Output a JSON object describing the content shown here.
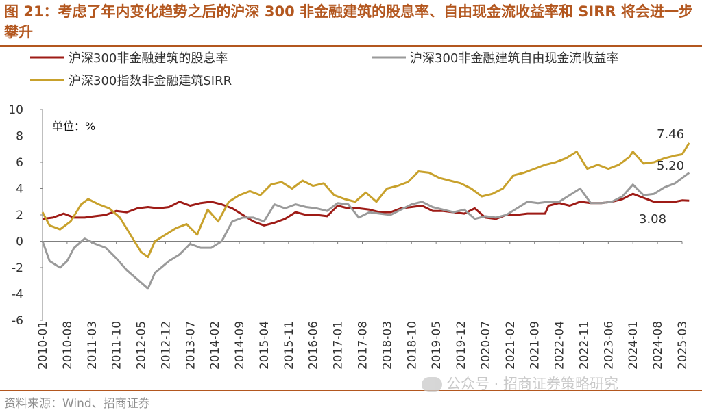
{
  "title": "图 21：考虑了年内变化趋势之后的沪深 300 非金融建筑的股息率、自由现金流收益率和 SIRR 将会进一步攀升",
  "source": "资料来源：Wind、招商证券",
  "watermark": "公众号 · 招商证券策略研究",
  "colors": {
    "title": "#b3571f",
    "dividend": "#9e1b16",
    "fcf": "#9a9a9a",
    "sirr": "#c8a12c"
  },
  "chart_data": {
    "type": "line",
    "unit_label": "单位：%",
    "ylim": [
      -6,
      10
    ],
    "yticks": [
      "10",
      "8",
      "6",
      "4",
      "2",
      "0",
      "-2",
      "-4",
      "-6"
    ],
    "xticks": [
      "2010-01",
      "2010-08",
      "2011-03",
      "2011-10",
      "2012-05",
      "2012-12",
      "2013-07",
      "2014-02",
      "2014-09",
      "2015-04",
      "2015-11",
      "2016-06",
      "2017-01",
      "2017-08",
      "2018-03",
      "2018-10",
      "2019-05",
      "2019-12",
      "2020-07",
      "2021-02",
      "2021-09",
      "2022-04",
      "2022-11",
      "2023-06",
      "2024-01",
      "2024-08",
      "2025-03"
    ],
    "legend_position": "top",
    "series": [
      {
        "name": "沪深300非金融建筑的股息率",
        "color": "#9e1b16",
        "end_label": "3.08",
        "points": [
          [
            "2010-01",
            1.7
          ],
          [
            "2010-04",
            1.8
          ],
          [
            "2010-07",
            2.1
          ],
          [
            "2010-10",
            1.8
          ],
          [
            "2011-01",
            1.8
          ],
          [
            "2011-04",
            1.9
          ],
          [
            "2011-07",
            2.0
          ],
          [
            "2011-10",
            2.3
          ],
          [
            "2012-01",
            2.2
          ],
          [
            "2012-04",
            2.5
          ],
          [
            "2012-07",
            2.6
          ],
          [
            "2012-10",
            2.5
          ],
          [
            "2013-01",
            2.6
          ],
          [
            "2013-04",
            3.0
          ],
          [
            "2013-07",
            2.7
          ],
          [
            "2013-10",
            2.9
          ],
          [
            "2014-01",
            3.0
          ],
          [
            "2014-04",
            2.8
          ],
          [
            "2014-07",
            2.5
          ],
          [
            "2014-10",
            2.0
          ],
          [
            "2015-01",
            1.5
          ],
          [
            "2015-04",
            1.2
          ],
          [
            "2015-07",
            1.4
          ],
          [
            "2015-10",
            1.7
          ],
          [
            "2016-01",
            2.2
          ],
          [
            "2016-04",
            2.0
          ],
          [
            "2016-07",
            2.0
          ],
          [
            "2016-10",
            1.9
          ],
          [
            "2017-01",
            2.7
          ],
          [
            "2017-04",
            2.5
          ],
          [
            "2017-07",
            2.5
          ],
          [
            "2017-10",
            2.4
          ],
          [
            "2018-01",
            2.2
          ],
          [
            "2018-04",
            2.2
          ],
          [
            "2018-07",
            2.5
          ],
          [
            "2018-10",
            2.6
          ],
          [
            "2019-01",
            2.7
          ],
          [
            "2019-04",
            2.3
          ],
          [
            "2019-07",
            2.3
          ],
          [
            "2019-10",
            2.2
          ],
          [
            "2020-01",
            2.1
          ],
          [
            "2020-04",
            2.5
          ],
          [
            "2020-07",
            1.8
          ],
          [
            "2020-10",
            1.7
          ],
          [
            "2021-01",
            2.0
          ],
          [
            "2021-04",
            2.0
          ],
          [
            "2021-07",
            2.1
          ],
          [
            "2021-10",
            2.1
          ],
          [
            "2021-12",
            2.1
          ],
          [
            "2022-01",
            2.7
          ],
          [
            "2022-04",
            2.9
          ],
          [
            "2022-07",
            2.7
          ],
          [
            "2022-10",
            3.0
          ],
          [
            "2023-01",
            2.9
          ],
          [
            "2023-04",
            2.9
          ],
          [
            "2023-07",
            3.0
          ],
          [
            "2023-10",
            3.2
          ],
          [
            "2024-01",
            3.6
          ],
          [
            "2024-04",
            3.3
          ],
          [
            "2024-07",
            3.0
          ],
          [
            "2024-10",
            3.0
          ],
          [
            "2025-01",
            3.0
          ],
          [
            "2025-03",
            3.1
          ],
          [
            "2025-05",
            3.08
          ]
        ]
      },
      {
        "name": "沪深300非金融建筑自由现金流收益率",
        "color": "#9a9a9a",
        "end_label": "5.20",
        "points": [
          [
            "2010-01",
            0.0
          ],
          [
            "2010-03",
            -1.5
          ],
          [
            "2010-06",
            -2.0
          ],
          [
            "2010-08",
            -1.5
          ],
          [
            "2010-10",
            -0.5
          ],
          [
            "2011-01",
            0.2
          ],
          [
            "2011-04",
            -0.2
          ],
          [
            "2011-07",
            -0.5
          ],
          [
            "2011-10",
            -1.3
          ],
          [
            "2012-01",
            -2.2
          ],
          [
            "2012-04",
            -2.9
          ],
          [
            "2012-07",
            -3.6
          ],
          [
            "2012-09",
            -2.4
          ],
          [
            "2013-01",
            -1.5
          ],
          [
            "2013-04",
            -1.0
          ],
          [
            "2013-07",
            -0.2
          ],
          [
            "2013-10",
            -0.5
          ],
          [
            "2014-01",
            -0.5
          ],
          [
            "2014-04",
            0.0
          ],
          [
            "2014-07",
            1.5
          ],
          [
            "2014-10",
            1.8
          ],
          [
            "2015-01",
            1.8
          ],
          [
            "2015-04",
            1.5
          ],
          [
            "2015-07",
            2.8
          ],
          [
            "2015-10",
            2.5
          ],
          [
            "2016-01",
            2.8
          ],
          [
            "2016-04",
            2.6
          ],
          [
            "2016-07",
            2.5
          ],
          [
            "2016-10",
            2.3
          ],
          [
            "2017-01",
            2.9
          ],
          [
            "2017-04",
            2.8
          ],
          [
            "2017-07",
            1.8
          ],
          [
            "2017-10",
            2.2
          ],
          [
            "2018-01",
            2.1
          ],
          [
            "2018-04",
            2.0
          ],
          [
            "2018-07",
            2.4
          ],
          [
            "2018-10",
            2.8
          ],
          [
            "2019-01",
            3.0
          ],
          [
            "2019-04",
            2.6
          ],
          [
            "2019-07",
            2.4
          ],
          [
            "2019-10",
            2.2
          ],
          [
            "2020-01",
            2.4
          ],
          [
            "2020-04",
            1.7
          ],
          [
            "2020-07",
            1.9
          ],
          [
            "2020-10",
            1.8
          ],
          [
            "2021-01",
            2.0
          ],
          [
            "2021-04",
            2.5
          ],
          [
            "2021-07",
            3.0
          ],
          [
            "2021-10",
            2.9
          ],
          [
            "2022-01",
            3.0
          ],
          [
            "2022-04",
            3.0
          ],
          [
            "2022-07",
            3.5
          ],
          [
            "2022-10",
            4.0
          ],
          [
            "2023-01",
            2.9
          ],
          [
            "2023-04",
            2.9
          ],
          [
            "2023-07",
            3.0
          ],
          [
            "2023-10",
            3.4
          ],
          [
            "2024-01",
            4.3
          ],
          [
            "2024-04",
            3.5
          ],
          [
            "2024-07",
            3.6
          ],
          [
            "2024-10",
            4.1
          ],
          [
            "2025-01",
            4.4
          ],
          [
            "2025-03",
            4.8
          ],
          [
            "2025-05",
            5.2
          ]
        ]
      },
      {
        "name": "沪深300指数非金融建筑SIRR",
        "color": "#c8a12c",
        "end_label": "7.46",
        "points": [
          [
            "2010-01",
            2.2
          ],
          [
            "2010-03",
            1.2
          ],
          [
            "2010-06",
            0.9
          ],
          [
            "2010-09",
            1.5
          ],
          [
            "2010-12",
            2.8
          ],
          [
            "2011-02",
            3.2
          ],
          [
            "2011-05",
            2.8
          ],
          [
            "2011-08",
            2.5
          ],
          [
            "2011-11",
            1.8
          ],
          [
            "2012-02",
            0.5
          ],
          [
            "2012-05",
            -0.8
          ],
          [
            "2012-07",
            -1.2
          ],
          [
            "2012-09",
            0.0
          ],
          [
            "2012-12",
            0.5
          ],
          [
            "2013-03",
            1.0
          ],
          [
            "2013-06",
            1.3
          ],
          [
            "2013-09",
            0.5
          ],
          [
            "2013-12",
            2.4
          ],
          [
            "2014-03",
            1.5
          ],
          [
            "2014-06",
            3.0
          ],
          [
            "2014-09",
            3.5
          ],
          [
            "2014-12",
            3.8
          ],
          [
            "2015-03",
            3.5
          ],
          [
            "2015-06",
            4.3
          ],
          [
            "2015-09",
            4.5
          ],
          [
            "2015-12",
            4.0
          ],
          [
            "2016-03",
            4.6
          ],
          [
            "2016-06",
            4.2
          ],
          [
            "2016-09",
            4.4
          ],
          [
            "2016-12",
            3.5
          ],
          [
            "2017-03",
            3.2
          ],
          [
            "2017-06",
            3.0
          ],
          [
            "2017-09",
            3.7
          ],
          [
            "2017-12",
            3.0
          ],
          [
            "2018-03",
            4.0
          ],
          [
            "2018-06",
            4.2
          ],
          [
            "2018-09",
            4.5
          ],
          [
            "2018-12",
            5.3
          ],
          [
            "2019-03",
            5.2
          ],
          [
            "2019-06",
            4.8
          ],
          [
            "2019-09",
            4.6
          ],
          [
            "2019-12",
            4.4
          ],
          [
            "2020-03",
            4.0
          ],
          [
            "2020-06",
            3.4
          ],
          [
            "2020-09",
            3.6
          ],
          [
            "2020-12",
            4.0
          ],
          [
            "2021-03",
            5.0
          ],
          [
            "2021-06",
            5.2
          ],
          [
            "2021-09",
            5.5
          ],
          [
            "2021-12",
            5.8
          ],
          [
            "2022-03",
            6.0
          ],
          [
            "2022-06",
            6.3
          ],
          [
            "2022-09",
            6.8
          ],
          [
            "2022-12",
            5.5
          ],
          [
            "2023-03",
            5.8
          ],
          [
            "2023-06",
            5.5
          ],
          [
            "2023-09",
            5.8
          ],
          [
            "2023-12",
            6.4
          ],
          [
            "2024-01",
            6.8
          ],
          [
            "2024-04",
            5.9
          ],
          [
            "2024-07",
            6.0
          ],
          [
            "2024-10",
            6.3
          ],
          [
            "2025-01",
            6.5
          ],
          [
            "2025-03",
            6.6
          ],
          [
            "2025-05",
            7.46
          ]
        ]
      }
    ]
  }
}
